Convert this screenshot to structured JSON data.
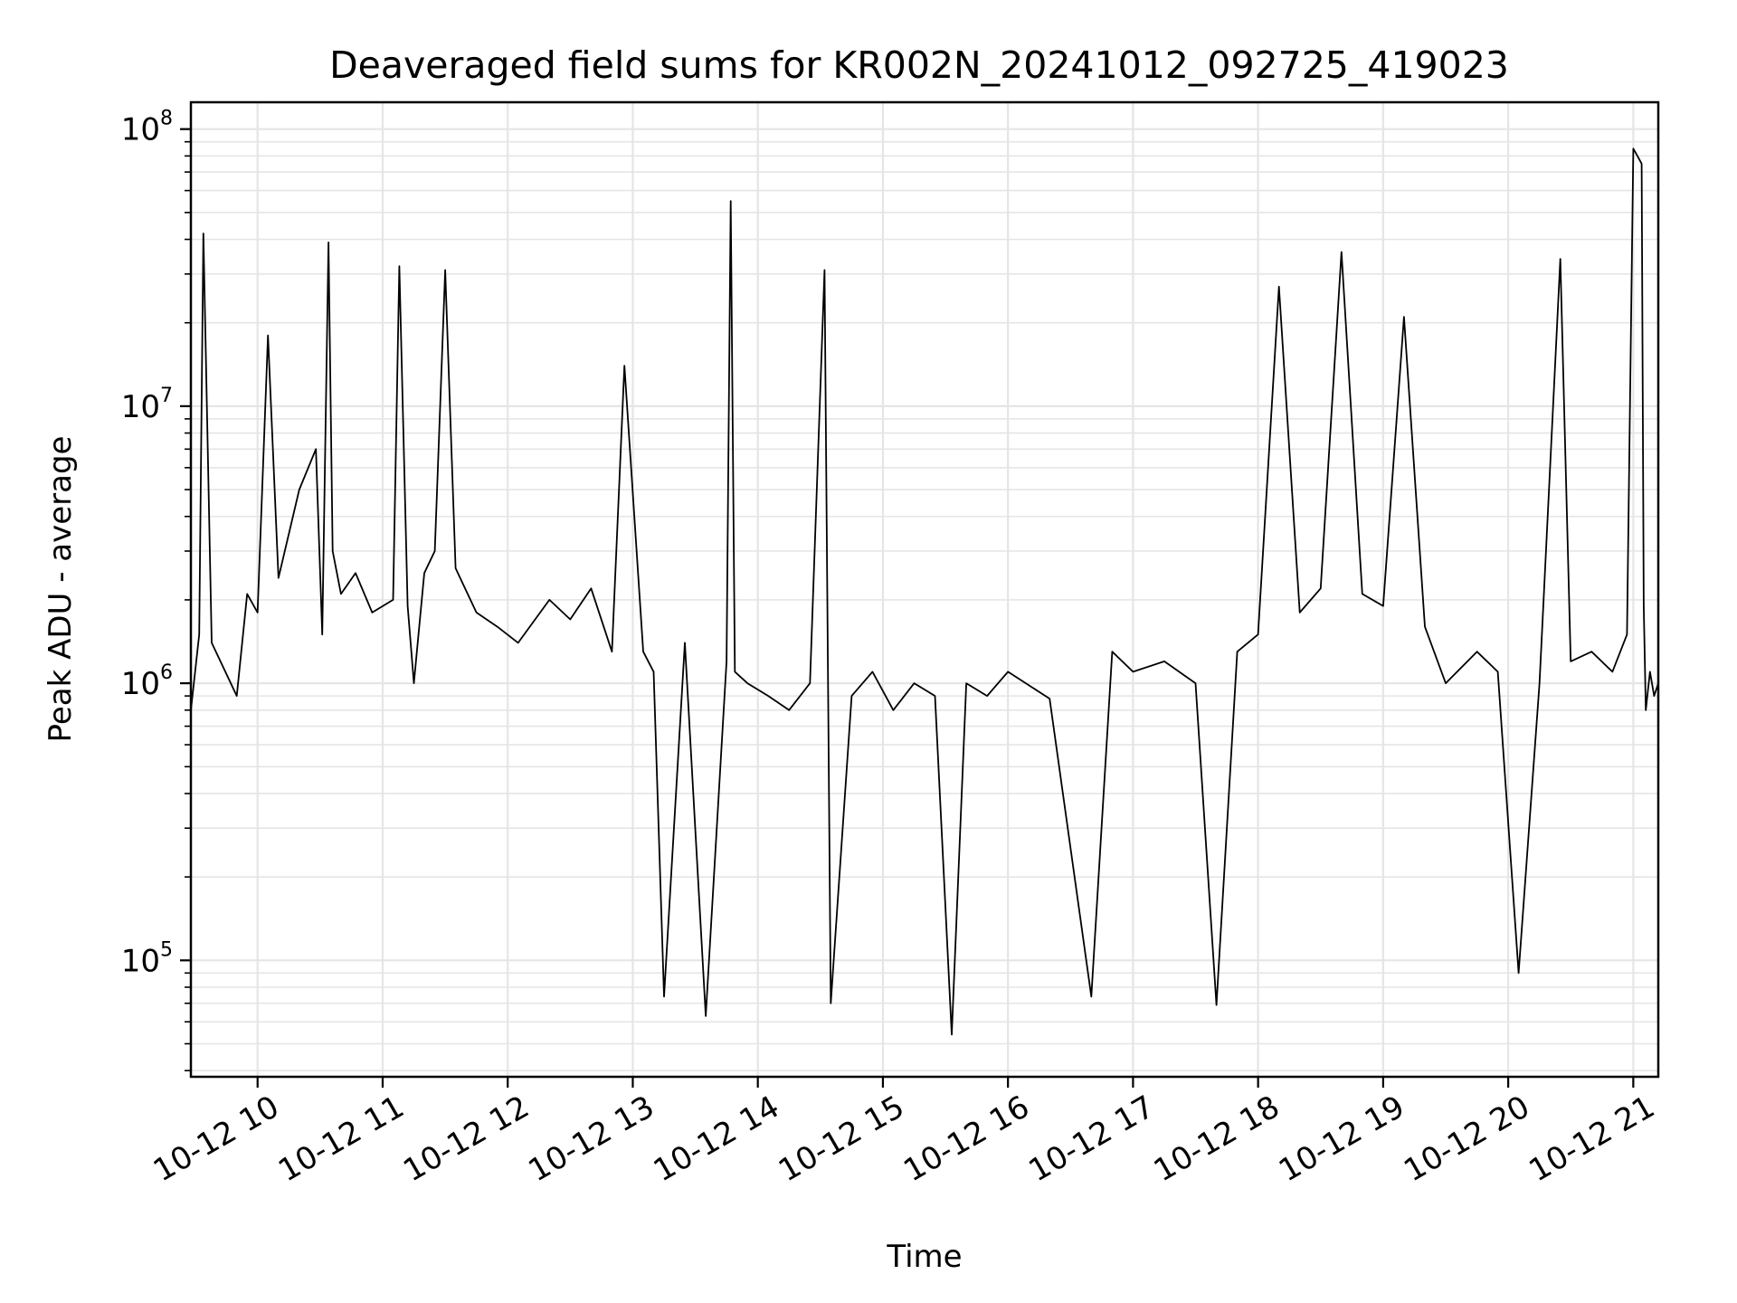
{
  "chart_data": {
    "type": "line",
    "title": "Deaveraged field sums for KR002N_20241012_092725_419023",
    "xlabel": "Time",
    "ylabel": "Peak ADU - average",
    "yscale": "log",
    "grid": true,
    "legend": "none",
    "line_color": "#000000",
    "grid_color": "#e5e5e5",
    "x_range": [
      "2024-10-12 09:28",
      "2024-10-12 21:12"
    ],
    "x_ticks": [
      "10-12 10",
      "10-12 11",
      "10-12 12",
      "10-12 13",
      "10-12 14",
      "10-12 15",
      "10-12 16",
      "10-12 17",
      "10-12 18",
      "10-12 19",
      "10-12 20",
      "10-12 21"
    ],
    "ylim": [
      38000,
      125000000
    ],
    "y_ticks": [
      {
        "base": "10",
        "exp": "5",
        "value": 100000
      },
      {
        "base": "10",
        "exp": "6",
        "value": 1000000
      },
      {
        "base": "10",
        "exp": "7",
        "value": 10000000
      },
      {
        "base": "10",
        "exp": "8",
        "value": 100000000
      }
    ],
    "series": [
      {
        "x": [
          "09:28",
          "09:32",
          "09:34",
          "09:38",
          "09:50",
          "09:55",
          "10:00",
          "10:05",
          "10:10",
          "10:20",
          "10:28",
          "10:31",
          "10:34",
          "10:36",
          "10:40",
          "10:47",
          "10:55",
          "11:05",
          "11:08",
          "11:12",
          "11:15",
          "11:20",
          "11:25",
          "11:30",
          "11:35",
          "11:45",
          "11:55",
          "12:05",
          "12:20",
          "12:30",
          "12:40",
          "12:50",
          "12:56",
          "13:05",
          "13:10",
          "13:15",
          "13:25",
          "13:35",
          "13:45",
          "13:47",
          "13:49",
          "13:55",
          "14:05",
          "14:15",
          "14:25",
          "14:32",
          "14:35",
          "14:45",
          "14:55",
          "15:05",
          "15:15",
          "15:25",
          "15:33",
          "15:40",
          "15:50",
          "16:00",
          "16:20",
          "16:40",
          "16:50",
          "17:00",
          "17:15",
          "17:30",
          "17:40",
          "17:50",
          "18:00",
          "18:10",
          "18:20",
          "18:30",
          "18:40",
          "18:50",
          "19:00",
          "19:10",
          "19:20",
          "19:30",
          "19:45",
          "19:55",
          "20:05",
          "20:15",
          "20:25",
          "20:30",
          "20:40",
          "20:50",
          "20:57",
          "21:00",
          "21:02",
          "21:04",
          "21:05",
          "21:06",
          "21:08",
          "21:10",
          "21:12"
        ],
        "y": [
          800000,
          1500000,
          42000000,
          1400000,
          900000,
          2100000,
          1800000,
          18000000,
          2400000,
          5000000,
          7000000,
          1500000,
          39000000,
          3000000,
          2100000,
          2500000,
          1800000,
          2000000,
          32000000,
          1900000,
          1000000,
          2500000,
          3000000,
          31000000,
          2600000,
          1800000,
          1600000,
          1400000,
          2000000,
          1700000,
          2200000,
          1300000,
          14000000,
          1300000,
          1100000,
          74000,
          1400000,
          63000,
          1200000,
          55000000,
          1100000,
          1000000,
          900000,
          800000,
          1000000,
          31000000,
          70000,
          900000,
          1100000,
          800000,
          1000000,
          900000,
          54000,
          1000000,
          900000,
          1100000,
          880000,
          74000,
          1300000,
          1100000,
          1200000,
          1000000,
          69000,
          1300000,
          1500000,
          27000000,
          1800000,
          2200000,
          36000000,
          2100000,
          1900000,
          21000000,
          1600000,
          1000000,
          1300000,
          1100000,
          90000,
          1000000,
          34000000,
          1200000,
          1300000,
          1100000,
          1500000,
          85000000,
          80000000,
          75000000,
          1900000,
          800000,
          1100000,
          900000,
          1000000
        ]
      }
    ]
  }
}
